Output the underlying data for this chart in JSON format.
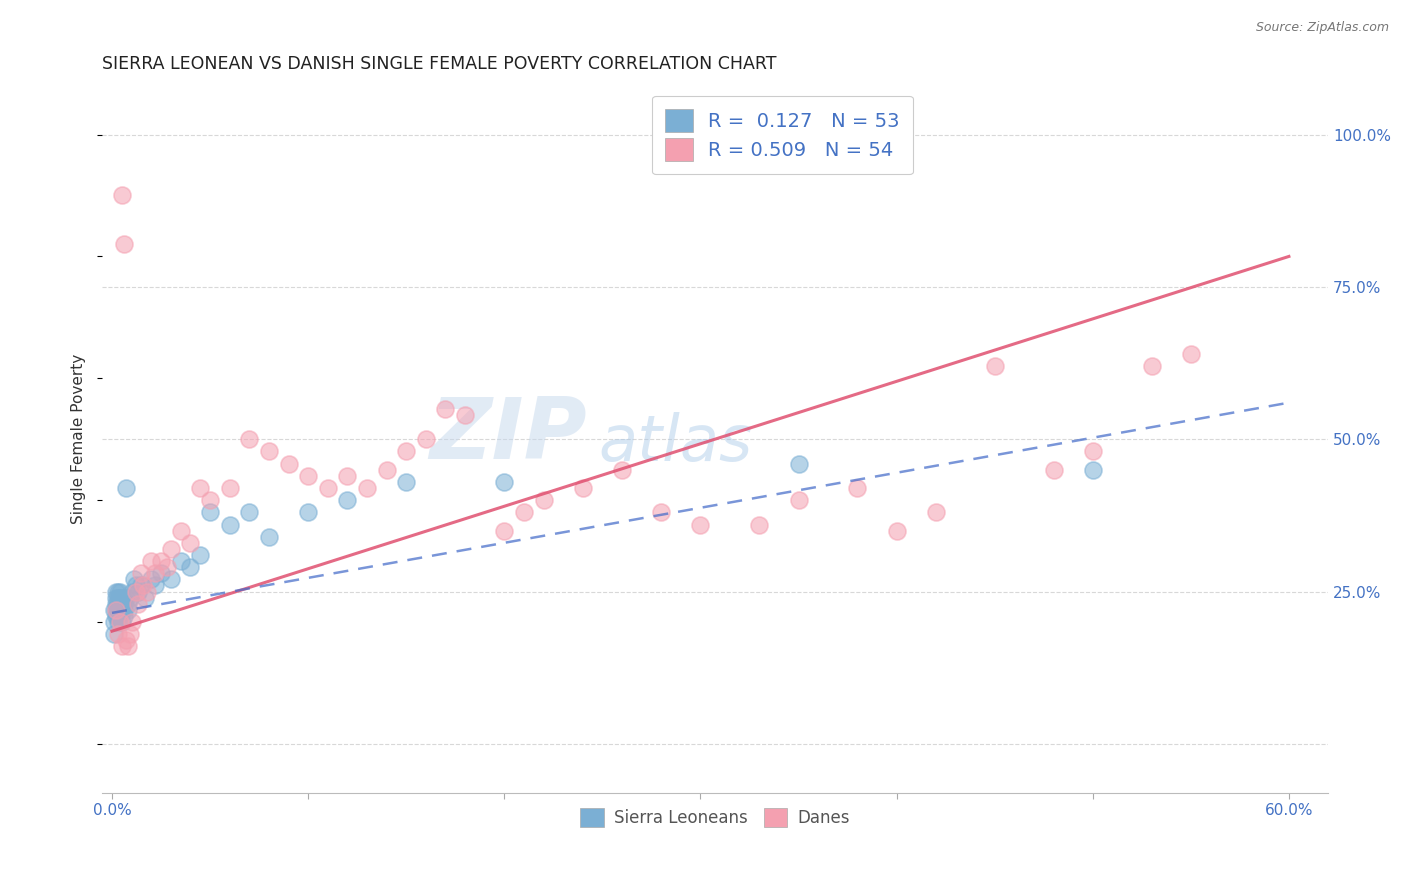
{
  "title": "SIERRA LEONEAN VS DANISH SINGLE FEMALE POVERTY CORRELATION CHART",
  "source": "Source: ZipAtlas.com",
  "ylabel": "Single Female Poverty",
  "x_tick_positions": [
    0.0,
    0.1,
    0.2,
    0.3,
    0.4,
    0.5,
    0.6
  ],
  "x_tick_labels": [
    "0.0%",
    "",
    "",
    "",
    "",
    "",
    "60.0%"
  ],
  "y_tick_positions": [
    0.0,
    0.25,
    0.5,
    0.75,
    1.0
  ],
  "y_tick_labels": [
    "",
    "25.0%",
    "50.0%",
    "75.0%",
    "100.0%"
  ],
  "xlim": [
    -0.005,
    0.62
  ],
  "ylim": [
    -0.08,
    1.08
  ],
  "legend_r": [
    "0.127",
    "0.509"
  ],
  "legend_n": [
    "53",
    "54"
  ],
  "legend_labels": [
    "Sierra Leoneans",
    "Danes"
  ],
  "blue_scatter_color": "#7bafd4",
  "pink_scatter_color": "#f4a0b0",
  "blue_line_color": "#4169c8",
  "pink_line_color": "#e05070",
  "watermark_zip_color": "#c5d8ed",
  "watermark_atlas_color": "#a8c8e8",
  "title_color": "#222222",
  "source_color": "#777777",
  "tick_color": "#4472c4",
  "ylabel_color": "#333333",
  "grid_color": "#d8d8d8",
  "legend_text_color": "#4472c4",
  "legend_r_color": "#111111",
  "sl_x": [
    0.001,
    0.001,
    0.001,
    0.002,
    0.002,
    0.002,
    0.002,
    0.002,
    0.003,
    0.003,
    0.003,
    0.003,
    0.003,
    0.003,
    0.004,
    0.004,
    0.004,
    0.004,
    0.005,
    0.005,
    0.005,
    0.005,
    0.006,
    0.006,
    0.006,
    0.007,
    0.007,
    0.008,
    0.008,
    0.009,
    0.01,
    0.011,
    0.012,
    0.013,
    0.015,
    0.017,
    0.02,
    0.022,
    0.025,
    0.03,
    0.035,
    0.04,
    0.045,
    0.05,
    0.06,
    0.07,
    0.08,
    0.1,
    0.12,
    0.15,
    0.2,
    0.35,
    0.5
  ],
  "sl_y": [
    0.2,
    0.22,
    0.18,
    0.25,
    0.24,
    0.22,
    0.21,
    0.23,
    0.22,
    0.24,
    0.23,
    0.25,
    0.21,
    0.2,
    0.22,
    0.24,
    0.21,
    0.25,
    0.23,
    0.22,
    0.24,
    0.2,
    0.23,
    0.22,
    0.21,
    0.24,
    0.42,
    0.23,
    0.22,
    0.24,
    0.25,
    0.27,
    0.26,
    0.25,
    0.26,
    0.24,
    0.27,
    0.26,
    0.28,
    0.27,
    0.3,
    0.29,
    0.31,
    0.38,
    0.36,
    0.38,
    0.34,
    0.38,
    0.4,
    0.43,
    0.43,
    0.46,
    0.45
  ],
  "d_x": [
    0.002,
    0.003,
    0.004,
    0.005,
    0.005,
    0.006,
    0.007,
    0.008,
    0.009,
    0.01,
    0.012,
    0.013,
    0.015,
    0.016,
    0.018,
    0.02,
    0.022,
    0.025,
    0.028,
    0.03,
    0.035,
    0.04,
    0.045,
    0.05,
    0.06,
    0.07,
    0.08,
    0.09,
    0.1,
    0.11,
    0.12,
    0.13,
    0.14,
    0.15,
    0.16,
    0.17,
    0.18,
    0.2,
    0.21,
    0.22,
    0.24,
    0.26,
    0.28,
    0.3,
    0.33,
    0.35,
    0.38,
    0.4,
    0.42,
    0.45,
    0.48,
    0.5,
    0.53,
    0.55
  ],
  "d_y": [
    0.22,
    0.18,
    0.2,
    0.16,
    0.9,
    0.82,
    0.17,
    0.16,
    0.18,
    0.2,
    0.25,
    0.23,
    0.28,
    0.26,
    0.25,
    0.3,
    0.28,
    0.3,
    0.29,
    0.32,
    0.35,
    0.33,
    0.42,
    0.4,
    0.42,
    0.5,
    0.48,
    0.46,
    0.44,
    0.42,
    0.44,
    0.42,
    0.45,
    0.48,
    0.5,
    0.55,
    0.54,
    0.35,
    0.38,
    0.4,
    0.42,
    0.45,
    0.38,
    0.36,
    0.36,
    0.4,
    0.42,
    0.35,
    0.38,
    0.62,
    0.45,
    0.48,
    0.62,
    0.64
  ],
  "pink_line_x0": 0.0,
  "pink_line_y0": 0.185,
  "pink_line_x1": 0.6,
  "pink_line_y1": 0.8,
  "blue_line_x0": 0.0,
  "blue_line_y0": 0.215,
  "blue_line_x1": 0.6,
  "blue_line_y1": 0.56
}
